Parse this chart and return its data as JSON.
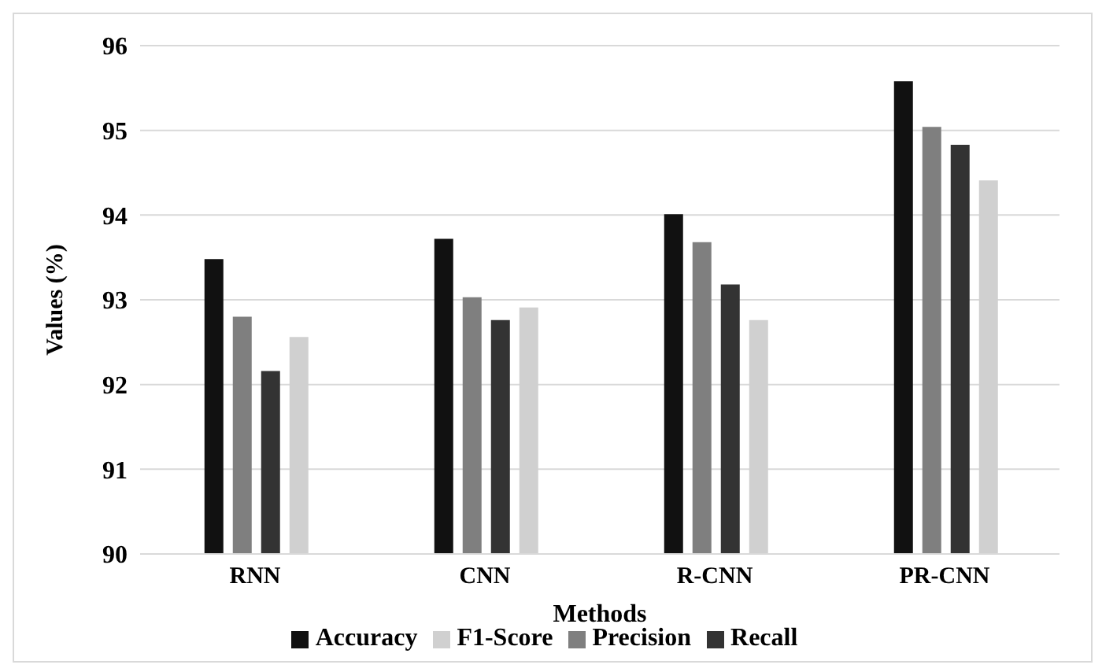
{
  "chart_data": {
    "type": "bar",
    "xlabel": "Methods",
    "ylabel": "Values (%)",
    "categories": [
      "RNN",
      "CNN",
      "R-CNN",
      "PR-CNN"
    ],
    "series": [
      {
        "name": "Accuracy",
        "color": "#111111",
        "values": [
          93.48,
          93.72,
          94.01,
          95.58
        ]
      },
      {
        "name": "Precision",
        "color": "#7f7f7f",
        "values": [
          92.8,
          93.03,
          93.68,
          95.04
        ]
      },
      {
        "name": "Recall",
        "color": "#333333",
        "values": [
          92.16,
          92.76,
          93.18,
          94.83
        ]
      },
      {
        "name": "F1-Score",
        "color": "#d0d0d0",
        "values": [
          92.56,
          92.91,
          92.76,
          94.41
        ]
      }
    ],
    "ylim": [
      90,
      96
    ],
    "yticks": [
      90,
      91,
      92,
      93,
      94,
      95,
      96
    ],
    "grid": "y",
    "legend": "bottom"
  }
}
